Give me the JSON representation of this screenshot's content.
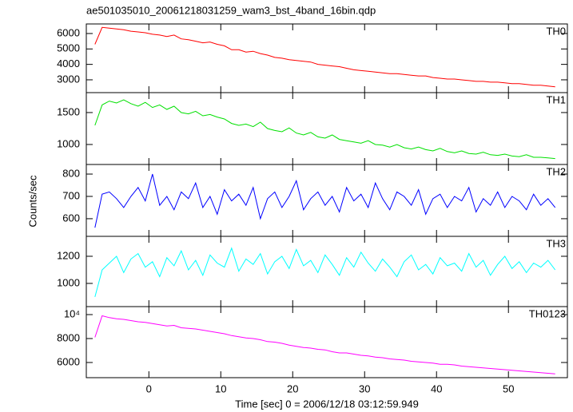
{
  "chart_data": {
    "type": "line",
    "title": "ae501035010_20061218031259_wam3_bst_4band_16bin.qdp",
    "xlabel": "Time [sec] 0 = 2006/12/18 03:12:59.949",
    "ylabel": "Counts/sec",
    "xlim": [
      -8.7,
      58.2
    ],
    "xticks": [
      0,
      10,
      20,
      30,
      40,
      50
    ],
    "x": [
      -7.5,
      -6.5,
      -5.5,
      -4.5,
      -3.5,
      -2.5,
      -1.5,
      -0.5,
      0.5,
      1.5,
      2.5,
      3.5,
      4.5,
      5.5,
      6.5,
      7.5,
      8.5,
      9.5,
      10.5,
      11.5,
      12.5,
      13.5,
      14.5,
      15.5,
      16.5,
      17.5,
      18.5,
      19.5,
      20.5,
      21.5,
      22.5,
      23.5,
      24.5,
      25.5,
      26.5,
      27.5,
      28.5,
      29.5,
      30.5,
      31.5,
      32.5,
      33.5,
      34.5,
      35.5,
      36.5,
      37.5,
      38.5,
      39.5,
      40.5,
      41.5,
      42.5,
      43.5,
      44.5,
      45.5,
      46.5,
      47.5,
      48.5,
      49.5,
      50.5,
      51.5,
      52.5,
      53.5,
      54.5,
      55.5,
      56.5
    ],
    "series": [
      {
        "name": "TH0",
        "color": "#ff0000",
        "ylim": [
          2170,
          6620
        ],
        "yticks": [
          3000,
          4000,
          5000,
          6000
        ],
        "values": [
          5300,
          6400,
          6350,
          6300,
          6250,
          6150,
          6100,
          6050,
          5950,
          5900,
          5800,
          5900,
          5650,
          5600,
          5500,
          5400,
          5450,
          5300,
          5200,
          4950,
          4950,
          4800,
          4850,
          4700,
          4600,
          4450,
          4400,
          4300,
          4250,
          4200,
          4150,
          4000,
          3950,
          3900,
          3850,
          3750,
          3650,
          3600,
          3550,
          3500,
          3450,
          3400,
          3400,
          3350,
          3300,
          3250,
          3250,
          3150,
          3100,
          3050,
          3050,
          3000,
          2950,
          2900,
          2900,
          2850,
          2850,
          2800,
          2750,
          2750,
          2700,
          2650,
          2650,
          2600,
          2550
        ]
      },
      {
        "name": "TH1",
        "color": "#00e000",
        "ylim": [
          687,
          1812
        ],
        "yticks": [
          1000,
          1500
        ],
        "values": [
          1300,
          1620,
          1680,
          1650,
          1700,
          1640,
          1600,
          1660,
          1580,
          1620,
          1550,
          1600,
          1500,
          1480,
          1520,
          1450,
          1470,
          1430,
          1400,
          1330,
          1300,
          1320,
          1280,
          1350,
          1250,
          1220,
          1200,
          1260,
          1180,
          1150,
          1190,
          1120,
          1100,
          1150,
          1080,
          1060,
          1040,
          1020,
          1060,
          1000,
          990,
          960,
          1000,
          950,
          930,
          960,
          920,
          900,
          940,
          890,
          870,
          900,
          860,
          850,
          880,
          840,
          830,
          850,
          820,
          810,
          840,
          800,
          800,
          790,
          780
        ]
      },
      {
        "name": "TH2",
        "color": "#0000ff",
        "ylim": [
          521,
          843
        ],
        "yticks": [
          600,
          700,
          800
        ],
        "values": [
          560,
          710,
          720,
          690,
          650,
          700,
          740,
          680,
          800,
          660,
          700,
          640,
          720,
          690,
          760,
          650,
          700,
          620,
          730,
          680,
          710,
          660,
          740,
          600,
          690,
          720,
          650,
          700,
          770,
          640,
          690,
          720,
          660,
          700,
          630,
          740,
          680,
          710,
          650,
          760,
          690,
          640,
          720,
          700,
          660,
          730,
          620,
          690,
          710,
          650,
          700,
          680,
          740,
          630,
          690,
          660,
          720,
          650,
          700,
          680,
          640,
          710,
          660,
          690,
          650
        ]
      },
      {
        "name": "TH3",
        "color": "#00ffff",
        "ylim": [
          829,
          1347
        ],
        "yticks": [
          1000,
          1200
        ],
        "values": [
          900,
          1100,
          1150,
          1200,
          1080,
          1180,
          1220,
          1120,
          1160,
          1050,
          1190,
          1130,
          1240,
          1100,
          1170,
          1060,
          1210,
          1150,
          1120,
          1260,
          1090,
          1180,
          1140,
          1220,
          1070,
          1160,
          1200,
          1110,
          1250,
          1130,
          1170,
          1080,
          1210,
          1140,
          1060,
          1190,
          1120,
          1230,
          1150,
          1090,
          1180,
          1120,
          1050,
          1160,
          1210,
          1100,
          1140,
          1070,
          1190,
          1130,
          1150,
          1090,
          1220,
          1120,
          1170,
          1060,
          1140,
          1200,
          1110,
          1160,
          1080,
          1150,
          1120,
          1170,
          1100
        ]
      },
      {
        "name": "TH0123",
        "color": "#ff00ff",
        "ylim": [
          4733,
          10667
        ],
        "yticks": [
          6000,
          8000,
          {
            "value": 10000,
            "label": "10⁴"
          }
        ],
        "values": [
          8100,
          9900,
          9750,
          9650,
          9600,
          9500,
          9400,
          9350,
          9250,
          9150,
          9050,
          9100,
          8900,
          8850,
          8800,
          8700,
          8600,
          8500,
          8400,
          8250,
          8150,
          8050,
          8000,
          7900,
          7750,
          7700,
          7600,
          7450,
          7350,
          7250,
          7200,
          7100,
          7050,
          6900,
          6800,
          6800,
          6700,
          6600,
          6550,
          6450,
          6400,
          6300,
          6250,
          6200,
          6100,
          6050,
          6000,
          5950,
          5850,
          5850,
          5800,
          5700,
          5650,
          5600,
          5550,
          5500,
          5450,
          5400,
          5350,
          5300,
          5250,
          5200,
          5150,
          5100,
          5050
        ]
      }
    ]
  }
}
